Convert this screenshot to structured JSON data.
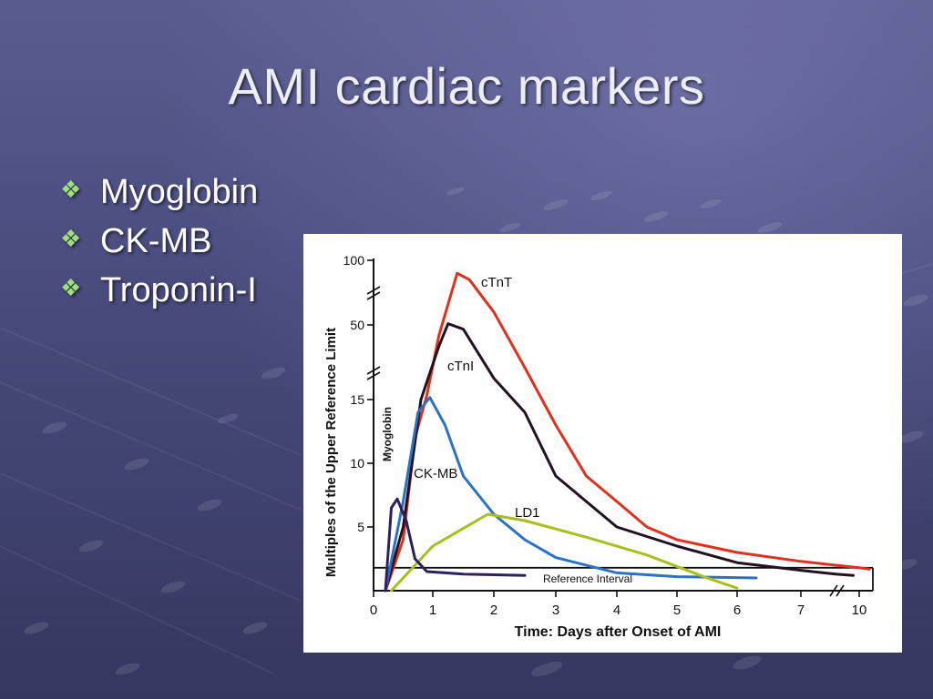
{
  "slide": {
    "title": "AMI cardiac markers",
    "bullets": [
      {
        "icon": "four-diamond-bullet-icon",
        "text": "Myoglobin"
      },
      {
        "icon": "four-diamond-bullet-icon",
        "text": "CK-MB"
      },
      {
        "icon": "four-diamond-bullet-icon",
        "text": "Troponin-I"
      }
    ],
    "colors": {
      "bullet": "#9be07a",
      "title": "#eceef6"
    }
  },
  "chart_data": {
    "type": "line",
    "title": "",
    "xlabel": "Time: Days after Onset of AMI",
    "ylabel": "Multiples of the Upper Reference Limit",
    "x_ticks": [
      "0",
      "1",
      "2",
      "3",
      "4",
      "5",
      "6",
      "7",
      "10"
    ],
    "y_ticks": [
      "5",
      "10",
      "15",
      "50",
      "100"
    ],
    "y_breaks": true,
    "x_break": true,
    "reference_interval": {
      "label": "Reference Interval",
      "y": 1.8
    },
    "grid": false,
    "legend": "none (direct labels)",
    "series": [
      {
        "name": "cTnT",
        "color": "#e0301e",
        "points": [
          [
            0.2,
            0
          ],
          [
            0.5,
            4
          ],
          [
            0.7,
            12
          ],
          [
            0.9,
            17
          ],
          [
            1.1,
            45
          ],
          [
            1.4,
            90
          ],
          [
            1.6,
            85
          ],
          [
            2,
            60
          ],
          [
            2.5,
            30
          ],
          [
            3,
            13
          ],
          [
            3.5,
            9
          ],
          [
            4,
            7
          ],
          [
            4.5,
            5
          ],
          [
            5,
            4
          ],
          [
            6,
            3
          ],
          [
            7,
            2.3
          ],
          [
            8,
            2
          ],
          [
            10,
            1.8
          ],
          [
            10.3,
            1.7
          ]
        ]
      },
      {
        "name": "cTnI",
        "color": "#22111e",
        "points": [
          [
            0.2,
            0
          ],
          [
            0.5,
            5
          ],
          [
            0.8,
            15
          ],
          [
            1.1,
            40
          ],
          [
            1.25,
            51
          ],
          [
            1.5,
            48
          ],
          [
            2,
            25
          ],
          [
            2.5,
            14
          ],
          [
            3,
            9
          ],
          [
            3.5,
            7
          ],
          [
            4,
            5
          ],
          [
            5,
            3.5
          ],
          [
            6,
            2.2
          ],
          [
            7,
            1.6
          ],
          [
            8,
            1.3
          ],
          [
            9.5,
            1.2
          ]
        ]
      },
      {
        "name": "CK-MB",
        "color": "#2a72c4",
        "points": [
          [
            0.2,
            0
          ],
          [
            0.5,
            7
          ],
          [
            0.75,
            14
          ],
          [
            0.95,
            16
          ],
          [
            1.2,
            13
          ],
          [
            1.5,
            9
          ],
          [
            2,
            6
          ],
          [
            2.5,
            4
          ],
          [
            3,
            2.6
          ],
          [
            4,
            1.4
          ],
          [
            5,
            1.1
          ],
          [
            6.3,
            1.0
          ]
        ]
      },
      {
        "name": "LD1",
        "color": "#a8bf1e",
        "points": [
          [
            0.3,
            0
          ],
          [
            1,
            3.5
          ],
          [
            1.9,
            6
          ],
          [
            2.5,
            5.5
          ],
          [
            3.5,
            4.2
          ],
          [
            4.5,
            2.8
          ],
          [
            5.5,
            1.0
          ],
          [
            6,
            0.2
          ]
        ]
      },
      {
        "name": "Myoglobin",
        "color": "#2e1f5e",
        "points": [
          [
            0.2,
            0
          ],
          [
            0.3,
            6.5
          ],
          [
            0.4,
            7.2
          ],
          [
            0.55,
            5.5
          ],
          [
            0.7,
            2.5
          ],
          [
            0.9,
            1.5
          ],
          [
            1.5,
            1.3
          ],
          [
            2.5,
            1.2
          ]
        ]
      }
    ]
  }
}
